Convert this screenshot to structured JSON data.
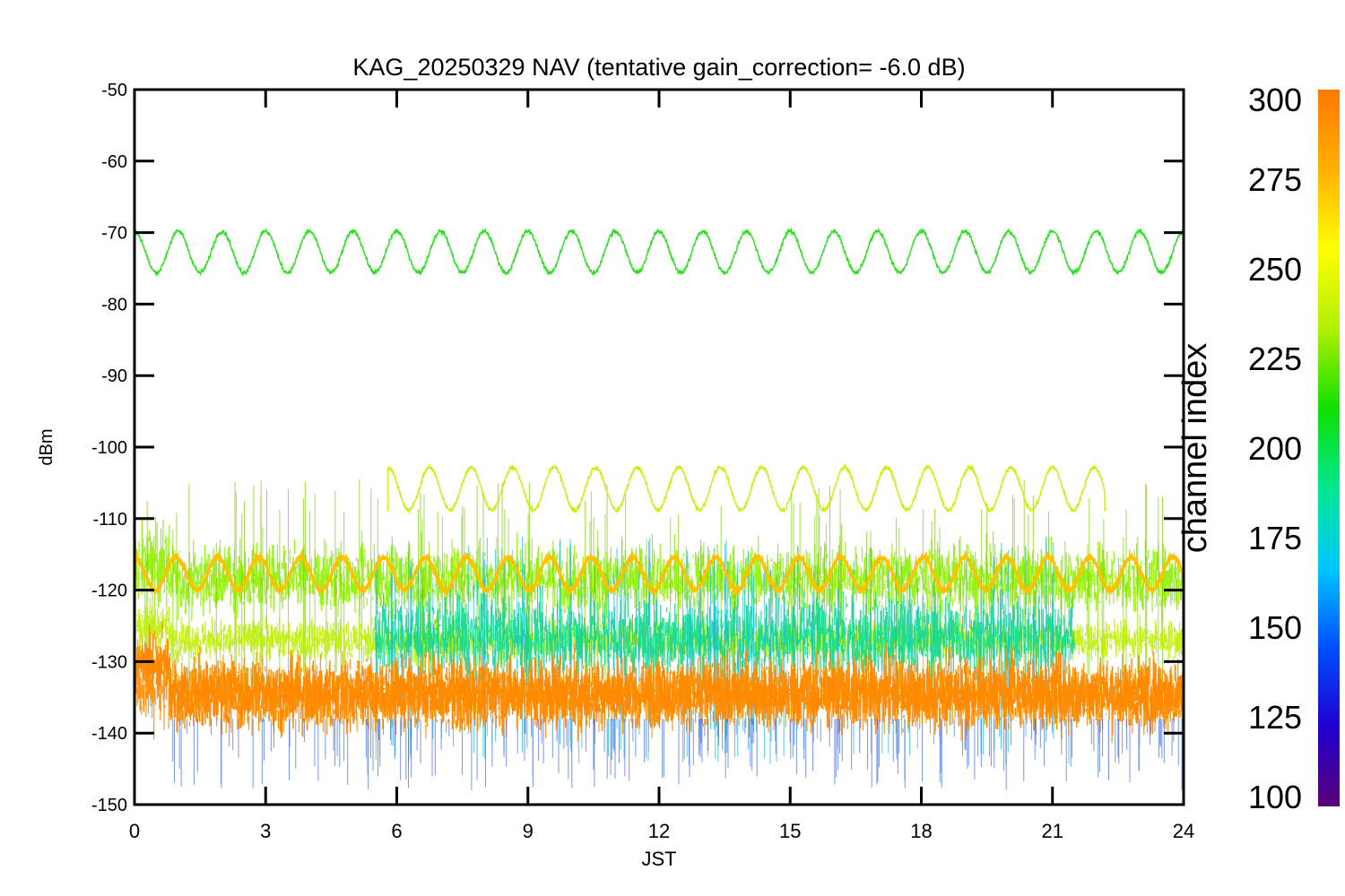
{
  "chart_data": {
    "type": "line",
    "title": "KAG_20250329 NAV (tentative gain_correction= -6.0 dB)",
    "xlabel": "JST",
    "ylabel": "dBm",
    "xlim": [
      0,
      24
    ],
    "ylim": [
      -150,
      -50
    ],
    "x_ticks": [
      0,
      3,
      6,
      9,
      12,
      15,
      18,
      21,
      24
    ],
    "y_ticks": [
      -150,
      -140,
      -130,
      -120,
      -110,
      -100,
      -90,
      -80,
      -70,
      -60,
      -50
    ],
    "grid": false,
    "colorbar": {
      "label": "channel index",
      "range": [
        100,
        300
      ],
      "ticks": [
        100,
        125,
        150,
        175,
        200,
        225,
        250,
        275,
        300
      ],
      "colormap": [
        "#5a0078",
        "#2000d0",
        "#0050ff",
        "#00c8ff",
        "#00e890",
        "#10e000",
        "#b0f000",
        "#ffff00",
        "#ffb000",
        "#ff7800"
      ]
    },
    "series": [
      {
        "channel": 220,
        "color": "#29e21d",
        "x_start": 0,
        "x_end": 24,
        "center": -72.7,
        "amplitude": 2.9,
        "period_hours": 1.0,
        "type": "sinusoid"
      },
      {
        "channel": 262,
        "color": "#c8f000",
        "x_start": 5.8,
        "x_end": 22.2,
        "center": -105.8,
        "amplitude": 3.0,
        "period_hours": 0.95,
        "type": "sinusoid",
        "start_level": -109
      },
      {
        "channel": 285,
        "color": "#ffc000",
        "x_start": 0,
        "x_end": 24,
        "center": -117.7,
        "amplitude": 2.3,
        "period_hours": 0.95,
        "type": "sinusoid"
      },
      {
        "channel": 245,
        "color": "#8ff000",
        "x_start": 0,
        "x_end": 24,
        "center": -118.5,
        "spread": 5,
        "type": "noise-band"
      },
      {
        "channel": 255,
        "color": "#bdf000",
        "x_start": 0,
        "x_end": 24,
        "center": -127.0,
        "spread": 3,
        "type": "noise-band"
      },
      {
        "channel": 190,
        "color": "#10d890",
        "x_start": 5.5,
        "x_end": 21.5,
        "center": -126.5,
        "spread": 6,
        "type": "noise-band"
      },
      {
        "channel": 295,
        "color": "#ff8a00",
        "x_start": 0,
        "x_end": 24,
        "center": -134.5,
        "spread": 5.5,
        "type": "noise-band"
      }
    ]
  }
}
